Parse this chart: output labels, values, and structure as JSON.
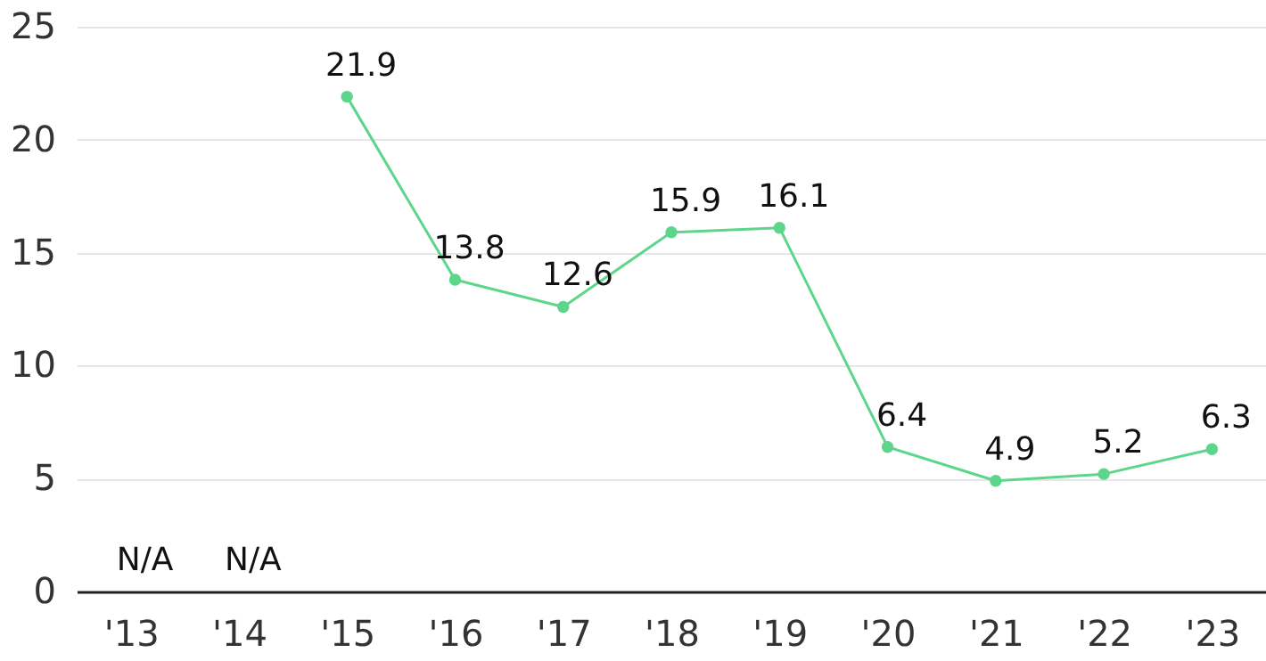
{
  "chart_data": {
    "type": "line",
    "categories": [
      "'13",
      "'14",
      "'15",
      "'16",
      "'17",
      "'18",
      "'19",
      "'20",
      "'21",
      "'22",
      "'23"
    ],
    "series": [
      {
        "color": "#5dd68c",
        "values": [
          null,
          null,
          21.9,
          13.8,
          12.6,
          15.9,
          16.1,
          6.4,
          4.9,
          5.2,
          6.3
        ],
        "value_labels": [
          "N/A",
          "N/A",
          "21.9",
          "13.8",
          "12.6",
          "15.9",
          "16.1",
          "6.4",
          "4.9",
          "5.2",
          "6.3"
        ]
      }
    ],
    "ylim": [
      0,
      25
    ],
    "yticks": [
      0,
      5,
      10,
      15,
      20,
      25
    ],
    "grid": "y",
    "marker": "circle",
    "line_style": "solid"
  }
}
